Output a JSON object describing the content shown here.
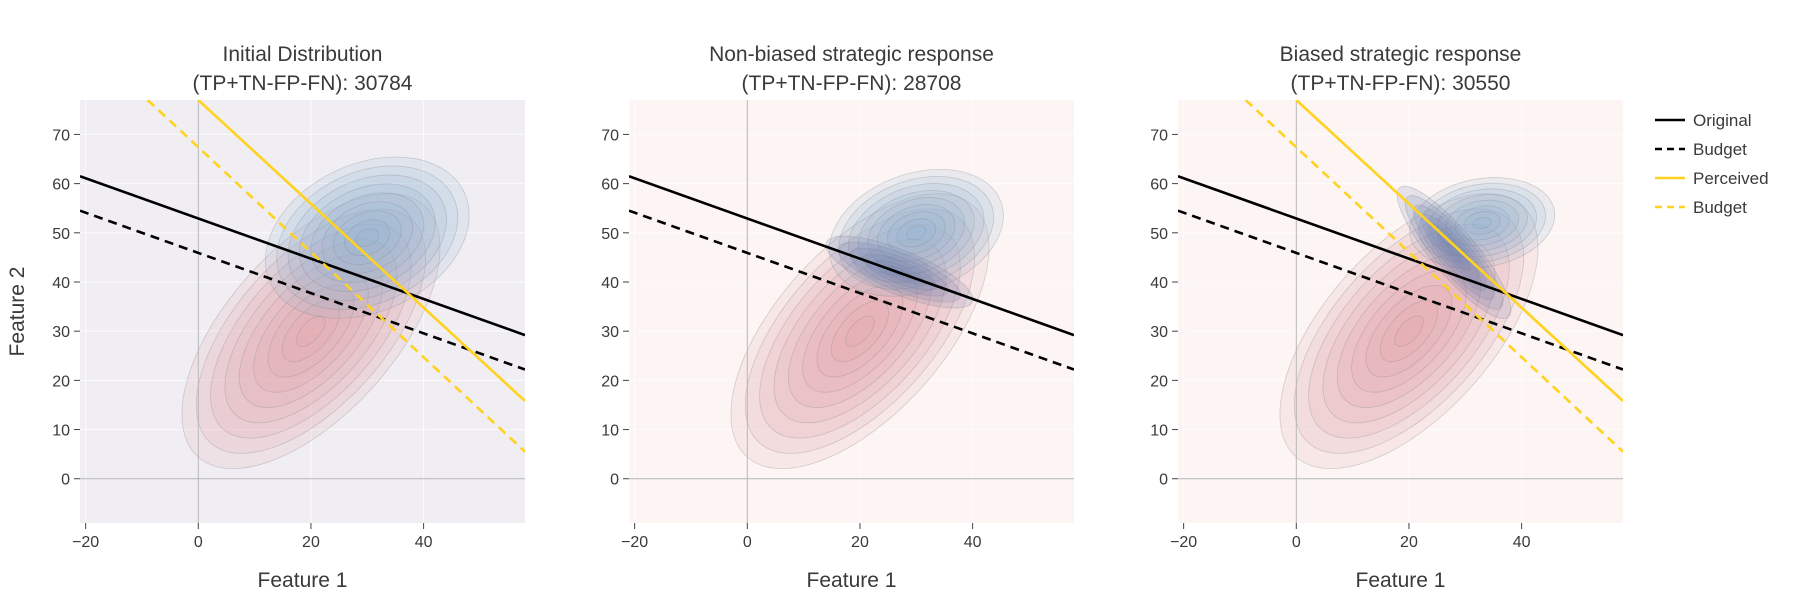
{
  "chart_data": [
    {
      "type": "contour",
      "title": "Initial Distribution",
      "subtitle": "(TP+TN-FP-FN): 30784",
      "xlabel": "Feature 1",
      "ylabel": "Feature 2",
      "xlim": [
        -21,
        58
      ],
      "ylim": [
        -9,
        77
      ],
      "xticks": [
        -20,
        0,
        20,
        40
      ],
      "yticks": [
        0,
        10,
        20,
        30,
        40,
        50,
        60,
        70
      ],
      "background": "#f0eef2",
      "grid": true,
      "densities": [
        {
          "class": "red",
          "color": "#e3a4aa",
          "center": [
            20,
            30
          ],
          "angle_deg": 48,
          "radii": [
            30,
            17
          ],
          "levels": 9
        },
        {
          "class": "blue",
          "color": "#8fb3d6",
          "center": [
            30,
            49
          ],
          "angle_deg": 25,
          "radii": [
            19,
            15
          ],
          "levels": 9
        }
      ],
      "lines": [
        {
          "name": "Original",
          "color": "#000000",
          "dash": "solid",
          "p1": [
            -21,
            61.5
          ],
          "p2": [
            58,
            29.2
          ]
        },
        {
          "name": "Budget",
          "color": "#000000",
          "dash": "dash",
          "p1": [
            -21,
            54.5
          ],
          "p2": [
            58,
            22.2
          ]
        },
        {
          "name": "Perceived",
          "color": "#ffd21f",
          "dash": "solid",
          "p1": [
            0,
            77
          ],
          "p2": [
            58,
            15.8
          ]
        },
        {
          "name": "Budget",
          "color": "#ffd21f",
          "dash": "dash",
          "p1": [
            -9,
            77
          ],
          "p2": [
            58,
            5.5
          ]
        }
      ]
    },
    {
      "type": "contour",
      "title": "Non-biased strategic response",
      "subtitle": "(TP+TN-FP-FN): 28708",
      "xlabel": "Feature 1",
      "ylabel": "",
      "xlim": [
        -21,
        58
      ],
      "ylim": [
        -9,
        77
      ],
      "xticks": [
        -20,
        0,
        20,
        40
      ],
      "yticks": [
        0,
        10,
        20,
        30,
        40,
        50,
        60,
        70
      ],
      "background": "#fcf5f3",
      "grid": true,
      "densities": [
        {
          "class": "red",
          "color": "#e3a4aa",
          "center": [
            20,
            30
          ],
          "angle_deg": 48,
          "radii": [
            30,
            17
          ],
          "levels": 9
        },
        {
          "class": "blue",
          "color": "#8fb3d6",
          "center": [
            30,
            50
          ],
          "angle_deg": 20,
          "radii": [
            16,
            12
          ],
          "levels": 9
        },
        {
          "class": "blue-shifted",
          "color": "#6a7fb0",
          "center": [
            27,
            42
          ],
          "angle_deg": -22,
          "radii": [
            14,
            4.5
          ],
          "levels": 6
        }
      ],
      "lines": [
        {
          "name": "Original",
          "color": "#000000",
          "dash": "solid",
          "p1": [
            -21,
            61.5
          ],
          "p2": [
            58,
            29.2
          ]
        },
        {
          "name": "Budget",
          "color": "#000000",
          "dash": "dash",
          "p1": [
            -21,
            54.5
          ],
          "p2": [
            58,
            22.2
          ]
        }
      ]
    },
    {
      "type": "contour",
      "title": "Biased strategic response",
      "subtitle": "(TP+TN-FP-FN): 30550",
      "xlabel": "Feature 1",
      "ylabel": "",
      "xlim": [
        -21,
        58
      ],
      "ylim": [
        -9,
        77
      ],
      "xticks": [
        -20,
        0,
        20,
        40
      ],
      "yticks": [
        0,
        10,
        20,
        30,
        40,
        50,
        60,
        70
      ],
      "background": "#fcf5f3",
      "grid": true,
      "densities": [
        {
          "class": "red",
          "color": "#e3a4aa",
          "center": [
            20,
            30
          ],
          "angle_deg": 48,
          "radii": [
            30,
            17
          ],
          "levels": 9
        },
        {
          "class": "blue",
          "color": "#8fb3d6",
          "center": [
            33,
            52
          ],
          "angle_deg": 10,
          "radii": [
            13,
            9
          ],
          "levels": 8
        },
        {
          "class": "blue-shifted",
          "color": "#6a7fb0",
          "center": [
            28,
            46
          ],
          "angle_deg": -50,
          "radii": [
            15,
            4.5
          ],
          "levels": 7
        }
      ],
      "lines": [
        {
          "name": "Original",
          "color": "#000000",
          "dash": "solid",
          "p1": [
            -21,
            61.5
          ],
          "p2": [
            58,
            29.2
          ]
        },
        {
          "name": "Budget",
          "color": "#000000",
          "dash": "dash",
          "p1": [
            -21,
            54.5
          ],
          "p2": [
            58,
            22.2
          ]
        },
        {
          "name": "Perceived",
          "color": "#ffd21f",
          "dash": "solid",
          "p1": [
            0,
            77
          ],
          "p2": [
            58,
            15.8
          ]
        },
        {
          "name": "Budget",
          "color": "#ffd21f",
          "dash": "dash",
          "p1": [
            -9,
            77
          ],
          "p2": [
            58,
            5.5
          ]
        }
      ]
    }
  ],
  "legend": {
    "position": "right",
    "items": [
      {
        "label": "Original",
        "color": "#000000",
        "dash": "solid"
      },
      {
        "label": "Budget",
        "color": "#000000",
        "dash": "dash"
      },
      {
        "label": "Perceived",
        "color": "#ffd21f",
        "dash": "solid"
      },
      {
        "label": "Budget",
        "color": "#ffd21f",
        "dash": "dash"
      }
    ]
  }
}
